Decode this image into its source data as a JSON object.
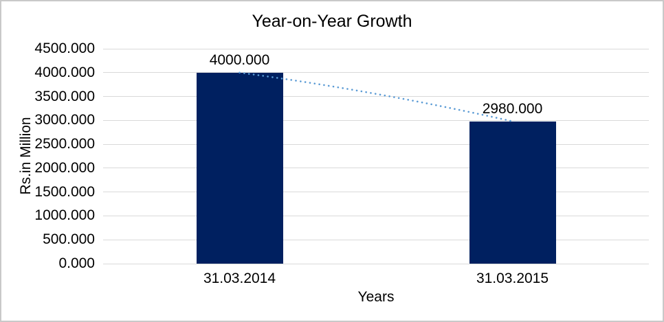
{
  "chart_data": {
    "type": "bar",
    "title": "Year-on-Year Growth",
    "xlabel": "Years",
    "ylabel": "Rs.in Million",
    "categories": [
      "31.03.2014",
      "31.03.2015"
    ],
    "values": [
      4000,
      2980
    ],
    "data_labels": [
      "4000.000",
      "2980.000"
    ],
    "yticks": [
      "4500.000",
      "4000.000",
      "3500.000",
      "3000.000",
      "2500.000",
      "2000.000",
      "1500.000",
      "1000.000",
      "500.000",
      "0.000"
    ],
    "ylim": [
      0,
      4500
    ],
    "ytick_step": 500,
    "grid": true,
    "legend_position": "none",
    "bar_color": "#002060",
    "gridline_color": "#d9d9d9",
    "trendline": {
      "style": "dotted",
      "color": "#5b9bd5",
      "from": 4000,
      "to": 2980
    }
  }
}
